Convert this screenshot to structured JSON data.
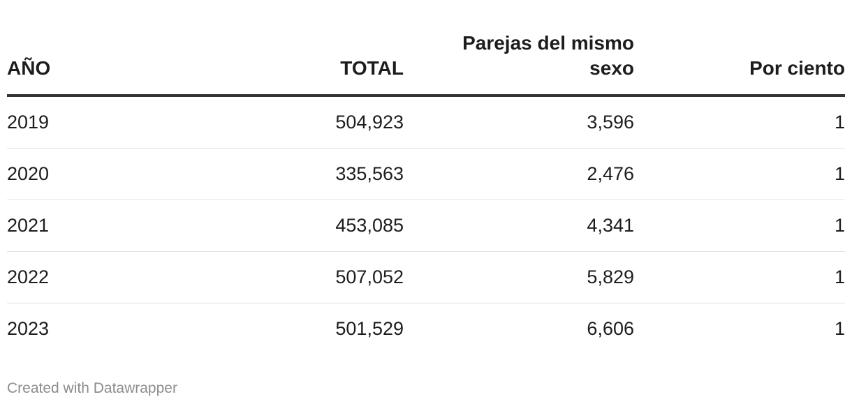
{
  "chart_data": {
    "type": "table",
    "columns": [
      "AÑO",
      "TOTAL",
      "Parejas del mismo sexo",
      "Por ciento"
    ],
    "rows": [
      [
        "2019",
        "504,923",
        "3,596",
        "1"
      ],
      [
        "2020",
        "335,563",
        "2,476",
        "1"
      ],
      [
        "2021",
        "453,085",
        "4,341",
        "1"
      ],
      [
        "2022",
        "507,052",
        "5,829",
        "1"
      ],
      [
        "2023",
        "501,529",
        "6,606",
        "1"
      ]
    ]
  },
  "footer": {
    "credit": "Created with Datawrapper"
  }
}
